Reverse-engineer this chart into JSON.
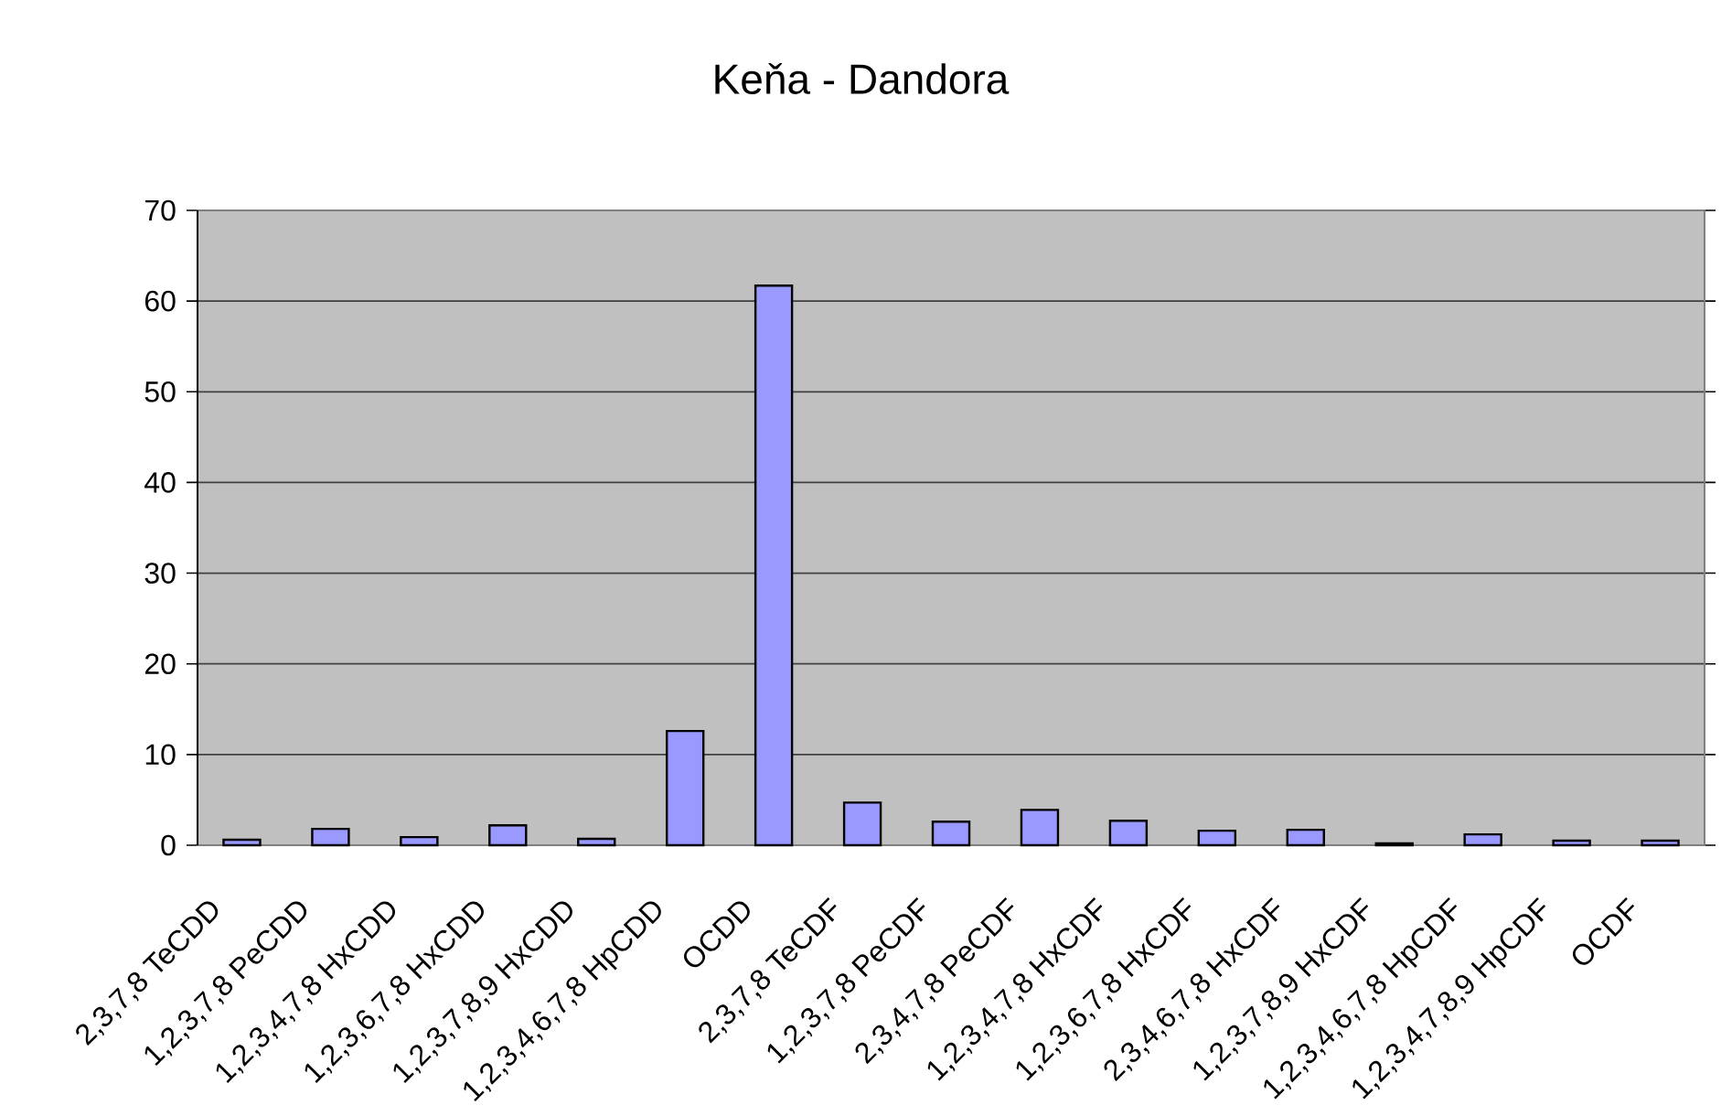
{
  "chart_data": {
    "type": "bar",
    "title": "Keňa - Dandora",
    "categories": [
      "2,3,7,8 TeCDD",
      "1,2,3,7,8 PeCDD",
      "1,2,3,4,7,8 HxCDD",
      "1,2,3,6,7,8 HxCDD",
      "1,2,3,7,8,9 HxCDD",
      "1,2,3,4,6,7,8 HpCDD",
      "OCDD",
      "2,3,7,8 TeCDF",
      "1,2,3,7,8 PeCDF",
      "2,3,4,7,8 PeCDF",
      "1,2,3,4,7,8 HxCDF",
      "1,2,3,6,7,8 HxCDF",
      "2,3,4,6,7,8 HxCDF",
      "1,2,3,7,8,9 HxCDF",
      "1,2,3,4,6,7,8 HpCDF",
      "1,2,3,4,7,8,9 HpCDF",
      "OCDF"
    ],
    "values": [
      0.6,
      1.8,
      0.9,
      2.2,
      0.7,
      12.6,
      61.7,
      4.7,
      2.6,
      3.9,
      2.7,
      1.6,
      1.7,
      0.2,
      1.2,
      0.5,
      0.5
    ],
    "color": "#9999ff",
    "ylim": [
      0,
      70
    ],
    "yticks": [
      0,
      10,
      20,
      30,
      40,
      50,
      60,
      70
    ],
    "grid": "y"
  }
}
